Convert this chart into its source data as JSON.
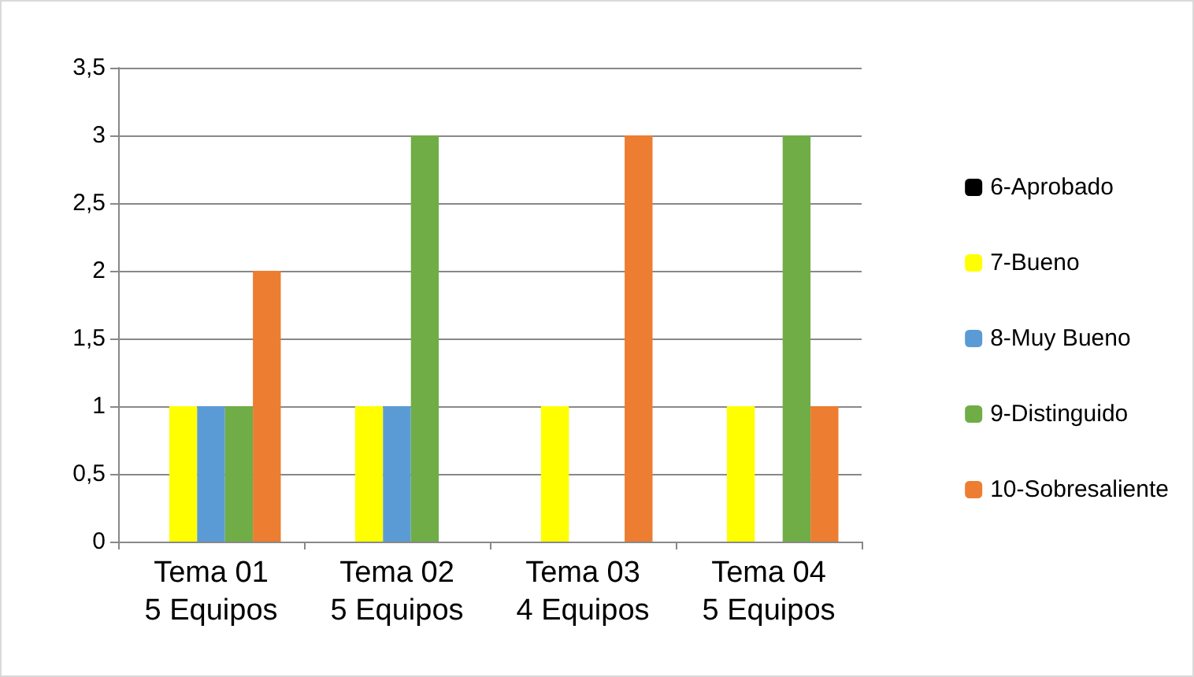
{
  "chart_data": {
    "type": "bar",
    "categories": [
      "Tema 01\n5 Equipos",
      "Tema 02\n5 Equipos",
      "Tema 03\n4 Equipos",
      "Tema 04\n5 Equipos"
    ],
    "series": [
      {
        "name": "6-Aprobado",
        "color": "#000000",
        "values": [
          0,
          0,
          0,
          0
        ]
      },
      {
        "name": "7-Bueno",
        "color": "#ffff00",
        "values": [
          1,
          1,
          1,
          1
        ]
      },
      {
        "name": "8-Muy Bueno",
        "color": "#5b9bd5",
        "values": [
          1,
          1,
          0,
          0
        ]
      },
      {
        "name": "9-Distinguido",
        "color": "#70ad47",
        "values": [
          1,
          3,
          0,
          3
        ]
      },
      {
        "name": "10-Sobresaliente",
        "color": "#ed7d31",
        "values": [
          2,
          0,
          3,
          1
        ]
      }
    ],
    "ylim": [
      0,
      3.5
    ],
    "yticks": [
      0,
      {
        "value": 0.5,
        "label": "0,5"
      },
      1,
      {
        "value": 1.5,
        "label": "1,5"
      },
      2,
      {
        "value": 2.5,
        "label": "2,5"
      },
      3,
      {
        "value": 3.5,
        "label": "3,5"
      }
    ],
    "grid": "y",
    "legend": "right"
  }
}
